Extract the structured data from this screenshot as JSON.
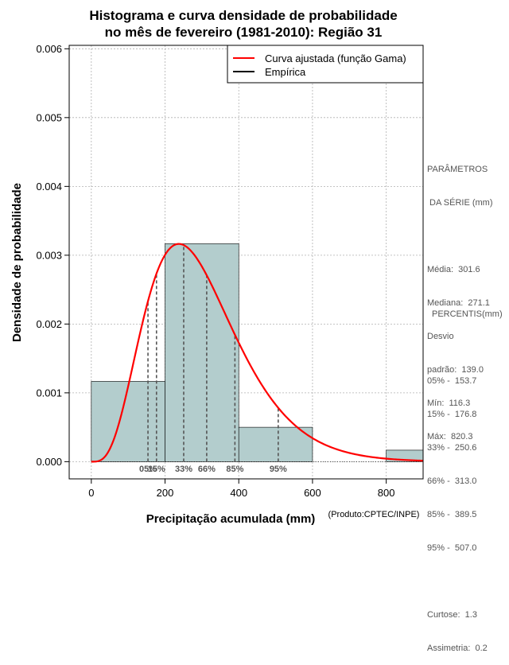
{
  "chart_data": {
    "type": "bar",
    "title_line1": "Histograma e curva densidade de probabilidade",
    "title_line2": "no mês de fevereiro (1981-2010): Região 31",
    "xlabel": "Precipitação acumulada (mm)",
    "ylabel": "Densidade de probabilidade",
    "credit": "(Produto:CPTEC/INPE)",
    "xlim": [
      -60,
      900
    ],
    "ylim": [
      -0.00025,
      0.00605
    ],
    "x_ticks": [
      0,
      200,
      400,
      600,
      800
    ],
    "x_tick_labels": [
      "0",
      "200",
      "400",
      "600",
      "800"
    ],
    "y_ticks": [
      0,
      0.001,
      0.002,
      0.003,
      0.004,
      0.005,
      0.006
    ],
    "y_tick_labels": [
      "0.000",
      "0.001",
      "0.002",
      "0.003",
      "0.004",
      "0.005",
      "0.006"
    ],
    "grid": true,
    "bins": [
      {
        "from": 0,
        "to": 200,
        "density": 0.001167
      },
      {
        "from": 200,
        "to": 400,
        "density": 0.003167
      },
      {
        "from": 400,
        "to": 600,
        "density": 0.0005
      },
      {
        "from": 600,
        "to": 800,
        "density": 0
      },
      {
        "from": 800,
        "to": 1000,
        "density": 0.000167
      }
    ],
    "gamma_fit": {
      "shape": 4.71,
      "scale": 64.0
    },
    "legend": [
      {
        "label": "Curva ajustada (função Gama)",
        "color": "#ff0000"
      },
      {
        "label": "Empírica",
        "color": "#000000"
      }
    ],
    "legend_position": "top-right",
    "percentile_lines": [
      {
        "value": 153.7,
        "label": "05%"
      },
      {
        "value": 176.8,
        "label": "15%"
      },
      {
        "value": 250.6,
        "label": "33%"
      },
      {
        "value": 313.0,
        "label": "66%"
      },
      {
        "value": 389.5,
        "label": "85%"
      },
      {
        "value": 507.0,
        "label": "95%"
      }
    ],
    "colors": {
      "bar_fill": "#b3cdcd",
      "curve": "#ff0000",
      "grid": "#b0b0b0",
      "percentile": "#555555"
    }
  },
  "stats": {
    "params_title1": "PARÂMETROS",
    "params_title2": " DA SÉRIE (mm)",
    "media": "Média:  301.6",
    "mediana": "Mediana:  271.1",
    "desvio1": "Desvio",
    "desvio2": "padrão:  139.0",
    "min": "Mín:  116.3",
    "max": "Máx:  820.3",
    "perc_title": "PERCENTIS(mm)",
    "p05": "05% -  153.7",
    "p15": "15% -  176.8",
    "p33": "33% -  250.6",
    "p66": "66% -  313.0",
    "p85": "85% -  389.5",
    "p95": "95% -  507.0",
    "curtose": "Curtose:  1.3",
    "assimetria": "Assimetria:  0.2"
  }
}
